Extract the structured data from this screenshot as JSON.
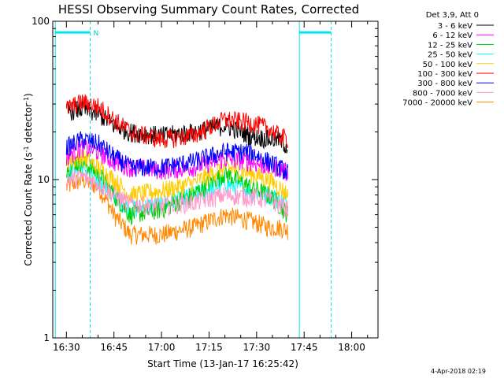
{
  "chart_data": {
    "type": "line",
    "title": "HESSI Observing Summary Count Rates, Corrected",
    "xlabel": "Start Time (13-Jan-17 16:25:42)",
    "ylabel_main": "Corrected Count Rate (s",
    "ylabel_sup1": "-1",
    "ylabel_mid": " detector",
    "ylabel_sup2": "-1",
    "ylabel_end": ")",
    "y_scale": "log",
    "ylim": [
      1,
      100
    ],
    "xlim": [
      "16:25:42",
      "18:04:00"
    ],
    "x_ticks": [
      "16:30",
      "16:45",
      "17:00",
      "17:15",
      "17:30",
      "17:45",
      "18:00"
    ],
    "x_tick_minutes": [
      0,
      15,
      30,
      45,
      60,
      75,
      90
    ],
    "y_ticks": [
      {
        "label": "1",
        "value": 1
      },
      {
        "label": "10",
        "value": 10
      },
      {
        "label": "100",
        "value": 100
      }
    ],
    "legend_header": "Det 3,9, Att 0",
    "series": [
      {
        "name": "3 - 6 keV",
        "color": "#000000",
        "x": [
          0,
          5,
          10,
          15,
          20,
          30,
          40,
          50,
          58,
          64,
          67,
          70
        ],
        "values": [
          27,
          28,
          26,
          22,
          20,
          19,
          20,
          22,
          19,
          18,
          18,
          16
        ]
      },
      {
        "name": "6 - 12 keV",
        "color": "#ff00ff",
        "x": [
          0,
          5,
          10,
          15,
          20,
          30,
          40,
          50,
          58,
          64,
          67,
          70
        ],
        "values": [
          14,
          16,
          15,
          13,
          12,
          11.5,
          12,
          13.5,
          13,
          12,
          12,
          11
        ]
      },
      {
        "name": "12 - 25 keV",
        "color": "#00cc00",
        "x": [
          0,
          5,
          10,
          15,
          20,
          30,
          40,
          50,
          58,
          64,
          67,
          70
        ],
        "values": [
          12,
          13,
          11,
          8,
          6,
          6.5,
          8,
          11,
          9,
          8,
          7,
          6
        ]
      },
      {
        "name": "25 - 50 keV",
        "color": "#00ffff",
        "x": [
          0,
          5,
          10,
          15,
          20,
          30,
          40,
          50,
          58,
          64,
          67,
          70
        ],
        "values": [
          11,
          12,
          10,
          8,
          6.5,
          7,
          8,
          9.5,
          8.5,
          8,
          7.5,
          7
        ]
      },
      {
        "name": "50 - 100 keV",
        "color": "#ffcc00",
        "x": [
          0,
          5,
          10,
          15,
          20,
          30,
          40,
          50,
          58,
          64,
          67,
          70
        ],
        "values": [
          13,
          14,
          12,
          10,
          8,
          8.5,
          9.5,
          12,
          11,
          10,
          9,
          8
        ]
      },
      {
        "name": "100 - 300 keV",
        "color": "#ff0000",
        "x": [
          0,
          5,
          10,
          15,
          20,
          30,
          40,
          50,
          58,
          64,
          67,
          70
        ],
        "values": [
          28,
          31,
          29,
          24,
          20,
          18,
          19,
          24,
          23,
          21,
          19,
          18
        ]
      },
      {
        "name": "300 - 800 keV",
        "color": "#0000ff",
        "x": [
          0,
          5,
          10,
          15,
          20,
          30,
          40,
          50,
          58,
          64,
          67,
          70
        ],
        "values": [
          16,
          18,
          17,
          14,
          12,
          12,
          13,
          15,
          15,
          13,
          12,
          11
        ]
      },
      {
        "name": "800 - 7000 keV",
        "color": "#ff99cc",
        "x": [
          0,
          5,
          10,
          15,
          20,
          30,
          40,
          50,
          58,
          64,
          67,
          70
        ],
        "values": [
          10,
          10.5,
          9.5,
          8,
          7,
          6.8,
          7.2,
          8,
          7.8,
          7.5,
          7,
          6.5
        ]
      },
      {
        "name": "7000 - 20000 keV",
        "color": "#ff8800",
        "x": [
          0,
          5,
          10,
          15,
          20,
          30,
          40,
          50,
          58,
          64,
          67,
          70
        ],
        "values": [
          9,
          10,
          9,
          6,
          4.5,
          4.5,
          5,
          6,
          5.5,
          5,
          5,
          4.8
        ]
      }
    ],
    "night_bars": [
      {
        "x_start": -3.5,
        "x_end": 7.5,
        "label": "N",
        "value": 85
      },
      {
        "x_start": 73.5,
        "x_end": 83.5,
        "label": "",
        "value": 85
      }
    ],
    "vertical_lines": {
      "solid": [
        -3.5,
        73.5
      ],
      "dashed": [
        7.5,
        83.5
      ]
    },
    "grid": false,
    "legend_position": "right-outside"
  },
  "footer_date": "4-Apr-2018 02:19"
}
